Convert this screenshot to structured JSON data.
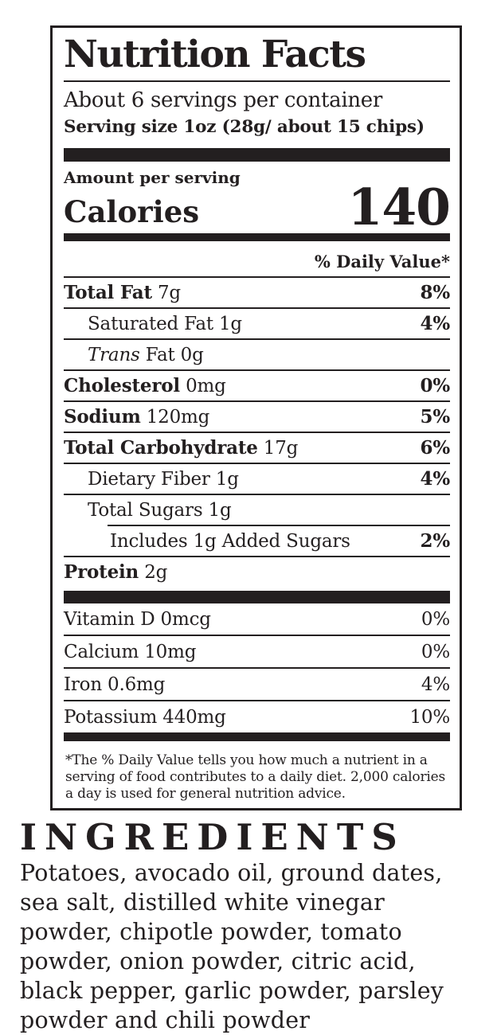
{
  "colors": {
    "ink": "#231f20",
    "background": "#ffffff"
  },
  "label": {
    "title": "Nutrition Facts",
    "servings_per_container": "About 6 servings per container",
    "serving_size": "Serving size 1oz (28g/ about 15 chips)",
    "amount_per_serving": "Amount per serving",
    "calories_label": "Calories",
    "calories_value": "140",
    "daily_value_header": "% Daily Value*",
    "rows": [
      {
        "bold": "Total Fat",
        "rest": " 7g",
        "dv": "8%",
        "indent": 0
      },
      {
        "rest": "Saturated Fat 1g",
        "dv": "4%",
        "indent": 1
      },
      {
        "italic": "Trans",
        "rest": " Fat 0g",
        "dv": "",
        "indent": 1
      },
      {
        "bold": "Cholesterol",
        "rest": " 0mg",
        "dv": "0%",
        "indent": 0
      },
      {
        "bold": "Sodium",
        "rest": " 120mg",
        "dv": "5%",
        "indent": 0
      },
      {
        "bold": "Total Carbohydrate",
        "rest": " 17g",
        "dv": "6%",
        "indent": 0
      },
      {
        "rest": "Dietary Fiber 1g",
        "dv": "4%",
        "indent": 1
      },
      {
        "rest": "Total Sugars 1g",
        "dv": "",
        "indent": 1
      },
      {
        "rest": "Includes 1g Added Sugars",
        "dv": "2%",
        "indent": 2,
        "divider_indent": true
      },
      {
        "bold": "Protein",
        "rest": " 2g",
        "dv": "",
        "indent": 0
      }
    ],
    "micronutrients": [
      {
        "rest": "Vitamin D 0mcg",
        "dv": "0%"
      },
      {
        "rest": "Calcium 10mg",
        "dv": "0%"
      },
      {
        "rest": "Iron 0.6mg",
        "dv": "4%"
      },
      {
        "rest": "Potassium 440mg",
        "dv": "10%"
      }
    ],
    "footnote_lines": [
      "*The % Daily Value tells you how much a nutrient in a",
      "serving of food contributes to a daily diet. 2,000 calories",
      "a day is used for general nutrition advice."
    ]
  },
  "ingredients": {
    "heading": "INGREDIENTS",
    "lines": [
      "Potatoes, avocado oil, ground dates,",
      "sea salt, distilled white vinegar",
      "powder, chipotle powder, tomato",
      "powder, onion powder, citric acid,",
      "black pepper, garlic powder, parsley",
      "powder and chili powder"
    ]
  }
}
